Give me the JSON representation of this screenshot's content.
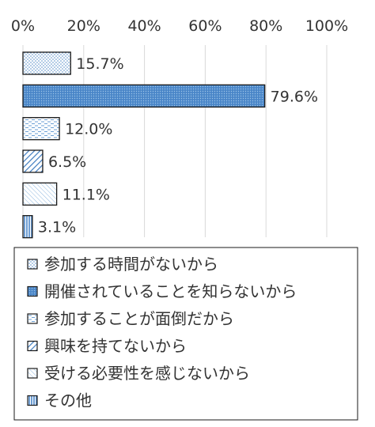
{
  "chart_data": {
    "type": "bar",
    "orientation": "horizontal",
    "xlim": [
      0,
      100
    ],
    "x_tick_labels": [
      "0%",
      "20%",
      "40%",
      "60%",
      "80%",
      "100%"
    ],
    "grid": true,
    "legend_position": "bottom",
    "categories": [
      "参加する時間がないから",
      "開催されていることを知らないから",
      "参加することが面倒だから",
      "興味を持てないから",
      "受ける必要性を感じないから",
      "その他"
    ],
    "values": [
      15.7,
      79.6,
      12.0,
      6.5,
      11.1,
      3.1
    ],
    "value_labels": [
      "15.7%",
      "79.6%",
      "12.0%",
      "6.5%",
      "11.1%",
      "3.1%"
    ],
    "patterns": [
      "dots-sparse",
      "dots-dense-blue",
      "dashes",
      "diagonal-stripes",
      "diagonal-hatch",
      "vertical-stripes"
    ],
    "colors": {
      "bar_stroke": "#1a1a1a",
      "blue": "#4a86c8",
      "pale_blue": "#9cc4e8",
      "grid": "#d9d9d9",
      "text": "#333333"
    }
  }
}
